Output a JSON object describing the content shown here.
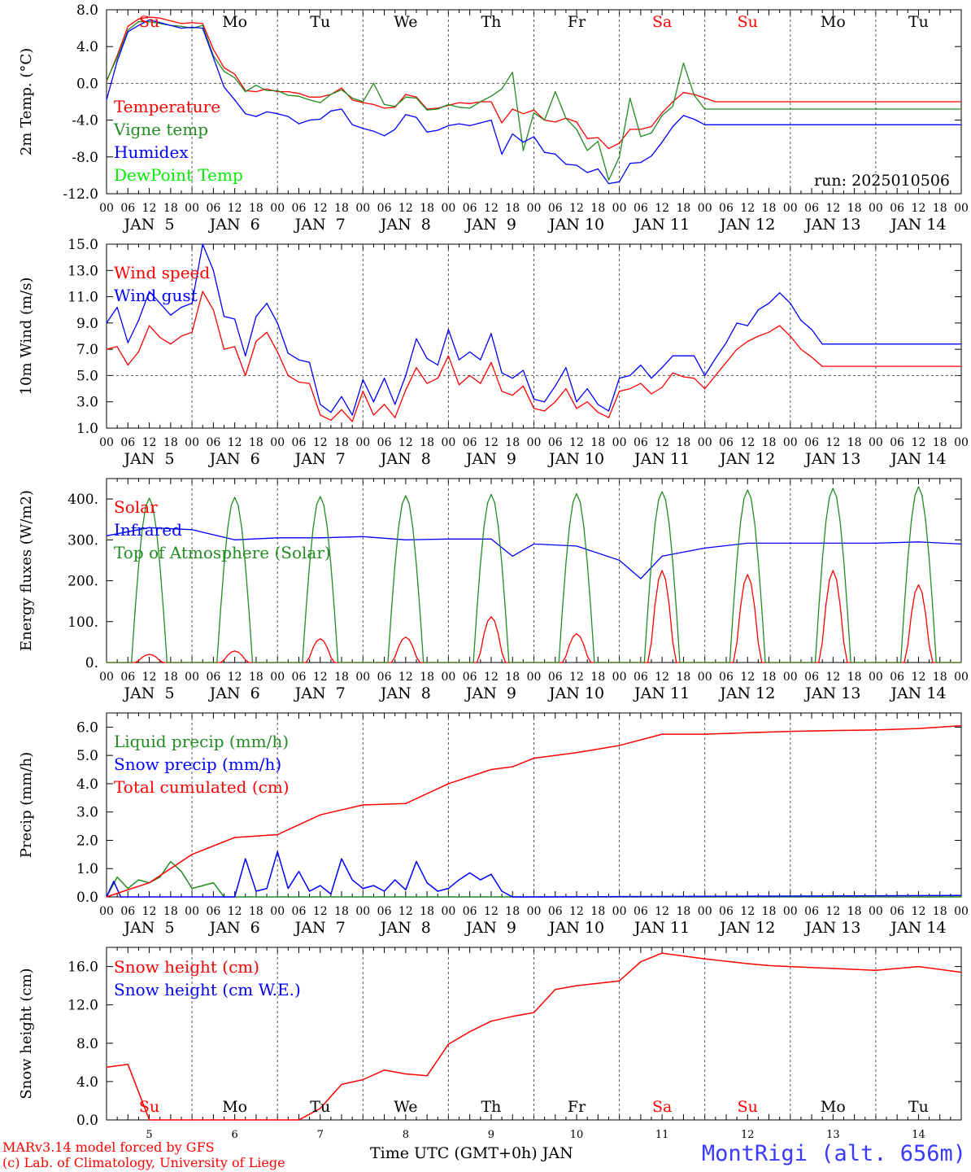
{
  "chart_data": [
    {
      "type": "line",
      "ylabel": "2m Temp. (°C)",
      "ylim": [
        -12,
        8
      ],
      "yticks": [
        "8.0",
        "4.0",
        "0.0",
        "-4.0",
        "-8.0",
        "-12.0"
      ],
      "legend": [
        "Temperature",
        "Vigne temp",
        "Humidex",
        "DewPoint Temp"
      ],
      "annotation": "run: 2025010506",
      "x_hours": [
        0,
        3,
        6,
        9,
        12,
        15,
        18,
        21,
        24,
        27,
        30,
        33,
        36,
        39,
        42,
        45,
        48,
        51,
        54,
        57,
        60,
        63,
        66,
        69,
        72,
        75,
        78,
        81,
        84,
        87,
        90,
        93,
        96,
        99,
        102,
        105,
        108,
        111,
        114,
        117,
        120,
        123,
        126,
        129,
        132,
        135,
        138,
        141,
        144,
        147,
        150,
        153,
        156,
        159,
        162,
        165,
        168,
        171,
        174,
        177,
        180,
        183,
        186,
        189,
        192,
        195,
        198,
        201,
        204,
        207,
        210,
        213,
        216,
        219,
        222,
        225,
        228,
        231,
        234,
        237,
        240
      ],
      "series": [
        {
          "name": "Temperature",
          "color": "#ff0000",
          "values": [
            0.2,
            3.0,
            6.2,
            7.0,
            7.2,
            7.1,
            6.8,
            6.5,
            6.6,
            6.5,
            3.7,
            1.7,
            1.0,
            -0.8,
            -0.9,
            -0.6,
            -0.9,
            -0.9,
            -1.1,
            -1.5,
            -1.5,
            -1.2,
            -0.5,
            -1.8,
            -2.1,
            -2.3,
            -2.7,
            -2.6,
            -1.2,
            -1.5,
            -2.8,
            -2.7,
            -2.4,
            -2.1,
            -2.2,
            -2.0,
            -2.0,
            -4.3,
            -2.8,
            -3.3,
            -2.9,
            -4.0,
            -4.2,
            -3.8,
            -4.2,
            -6.0,
            -5.9,
            -7.1,
            -6.5,
            -5.0,
            -5.0,
            -4.7,
            -3.2,
            -2.0,
            -1.0,
            -1.2,
            -1.6,
            -2.0,
            -2.0,
            -2.0,
            -2.0,
            -2.0,
            -2.0,
            -2.0,
            -2.0,
            -2.0,
            -2.0,
            -2.0,
            -2.0,
            -2.0,
            -2.0,
            -2.0,
            -2.0,
            -2.0,
            -2.0,
            -2.0,
            -2.0,
            -2.0,
            -2.0,
            -2.0,
            -2.0
          ]
        },
        {
          "name": "Vigne temp",
          "color": "#228b22",
          "values": [
            0.3,
            2.8,
            5.8,
            6.7,
            6.7,
            6.5,
            6.3,
            6.2,
            6.0,
            6.3,
            3.0,
            1.3,
            0.6,
            -0.9,
            -0.2,
            -0.8,
            -0.8,
            -1.3,
            -1.4,
            -1.8,
            -2.1,
            -1.2,
            -0.7,
            -1.6,
            -2.0,
            0.0,
            -2.3,
            -2.5,
            -1.5,
            -1.6,
            -2.9,
            -2.8,
            -2.3,
            -2.6,
            -2.7,
            -2.0,
            -1.4,
            -0.6,
            1.2,
            -7.3,
            -3.2,
            -4.0,
            -0.9,
            -3.8,
            -5.0,
            -7.3,
            -6.3,
            -10.5,
            -8.0,
            -1.6,
            -5.8,
            -5.4,
            -3.5,
            -2.5,
            2.2,
            -1.3,
            -2.8,
            -2.8,
            -2.8,
            -2.8,
            -2.8,
            -2.8,
            -2.8,
            -2.8,
            -2.8,
            -2.8,
            -2.8,
            -2.8,
            -2.8,
            -2.8,
            -2.8,
            -2.8,
            -2.8,
            -2.8,
            -2.8,
            -2.8,
            -2.8,
            -2.8,
            -2.8,
            -2.8,
            -2.8
          ]
        },
        {
          "name": "Humidex",
          "color": "#0000ff",
          "values": [
            -1.8,
            2.4,
            5.6,
            6.3,
            6.9,
            6.6,
            6.3,
            6.0,
            6.1,
            6.0,
            2.8,
            -0.4,
            -1.8,
            -3.3,
            -3.6,
            -3.1,
            -3.3,
            -3.6,
            -4.4,
            -4.0,
            -3.9,
            -3.0,
            -2.8,
            -4.5,
            -4.9,
            -5.2,
            -5.7,
            -5.0,
            -3.4,
            -3.7,
            -5.3,
            -5.1,
            -4.6,
            -4.4,
            -4.6,
            -4.3,
            -4.0,
            -7.7,
            -5.5,
            -6.4,
            -5.8,
            -7.5,
            -7.7,
            -8.8,
            -8.9,
            -9.7,
            -9.3,
            -10.9,
            -10.7,
            -8.7,
            -8.6,
            -7.9,
            -6.4,
            -4.7,
            -3.5,
            -3.9,
            -4.5,
            -4.5,
            -4.5,
            -4.5,
            -4.5,
            -4.5,
            -4.5,
            -4.5,
            -4.5,
            -4.5,
            -4.5,
            -4.5,
            -4.5,
            -4.5,
            -4.5,
            -4.5,
            -4.5,
            -4.5,
            -4.5,
            -4.5,
            -4.5,
            -4.5,
            -4.5,
            -4.5,
            -4.5
          ]
        },
        {
          "name": "DewPoint Temp",
          "color": "#00ee00",
          "values": []
        }
      ]
    },
    {
      "type": "line",
      "ylabel": "10m Wind (m/s)",
      "ylim": [
        1,
        15
      ],
      "yticks": [
        "15.0",
        "13.0",
        "11.0",
        "9.0",
        "7.0",
        "5.0",
        "3.0",
        "1.0"
      ],
      "legend": [
        "Wind speed",
        "Wind gust"
      ],
      "x_hours": [
        0,
        3,
        6,
        9,
        12,
        15,
        18,
        21,
        24,
        27,
        30,
        33,
        36,
        39,
        42,
        45,
        48,
        51,
        54,
        57,
        60,
        63,
        66,
        69,
        72,
        75,
        78,
        81,
        84,
        87,
        90,
        93,
        96,
        99,
        102,
        105,
        108,
        111,
        114,
        117,
        120,
        123,
        126,
        129,
        132,
        135,
        138,
        141,
        144,
        147,
        150,
        153,
        156,
        159,
        162,
        165,
        168,
        171,
        174,
        177,
        180,
        183,
        186,
        189,
        192,
        195,
        198,
        201,
        204,
        207,
        210,
        213,
        216,
        219,
        222,
        225,
        228,
        231,
        234,
        237,
        240
      ],
      "series": [
        {
          "name": "Wind speed",
          "color": "#ff0000",
          "values": [
            7.0,
            7.2,
            5.8,
            6.8,
            8.8,
            7.9,
            7.4,
            8.0,
            8.3,
            11.4,
            10.0,
            7.0,
            7.2,
            5.0,
            7.6,
            8.3,
            6.8,
            5.0,
            4.5,
            4.4,
            2.0,
            1.6,
            2.4,
            1.5,
            3.8,
            2.0,
            2.8,
            1.8,
            3.9,
            5.6,
            4.4,
            4.8,
            6.5,
            4.3,
            5.0,
            4.4,
            6.0,
            3.8,
            3.5,
            4.2,
            2.5,
            2.3,
            3.0,
            4.0,
            2.5,
            3.0,
            2.2,
            1.8,
            3.8,
            4.0,
            4.4,
            3.6,
            4.1,
            5.2,
            4.9,
            4.8,
            4.0,
            5.0,
            6.0,
            7.0,
            7.6,
            8.0,
            8.3,
            8.8,
            8.0,
            7.0,
            6.4,
            5.7,
            5.7,
            5.7,
            5.7,
            5.7,
            5.7,
            5.7,
            5.7,
            5.7,
            5.7,
            5.7,
            5.7,
            5.7,
            5.7
          ]
        },
        {
          "name": "Wind gust",
          "color": "#0000ff",
          "values": [
            9.0,
            10.2,
            7.5,
            9.2,
            11.4,
            10.5,
            9.6,
            10.2,
            10.5,
            15.0,
            13.0,
            9.5,
            9.3,
            6.5,
            9.5,
            10.5,
            9.0,
            6.7,
            6.2,
            6.0,
            2.8,
            2.2,
            3.4,
            2.0,
            4.7,
            3.0,
            4.8,
            2.8,
            5.0,
            7.8,
            6.3,
            5.8,
            8.5,
            6.2,
            6.8,
            6.2,
            8.2,
            5.2,
            4.8,
            5.4,
            3.2,
            3.0,
            4.2,
            5.6,
            3.0,
            4.0,
            2.8,
            2.3,
            4.8,
            5.0,
            5.8,
            4.8,
            5.6,
            6.5,
            6.5,
            6.5,
            5.0,
            6.3,
            7.5,
            9.0,
            8.8,
            10.0,
            10.5,
            11.3,
            10.5,
            9.2,
            8.5,
            7.4,
            7.4,
            7.4,
            7.4,
            7.4,
            7.4,
            7.4,
            7.4,
            7.4,
            7.4,
            7.4,
            7.4,
            7.4,
            7.4
          ]
        }
      ]
    },
    {
      "type": "line",
      "ylabel": "Energy fluxes (W/m2)",
      "ylim": [
        0,
        450
      ],
      "yticks": [
        "400.",
        "300.",
        "200.",
        "100.",
        "0."
      ],
      "legend": [
        "Solar",
        "Infrared",
        "Top of Atmosphere (Solar)"
      ],
      "series": [
        {
          "name": "Solar",
          "color": "#ff0000",
          "day_peaks": [
            20,
            28,
            58,
            62,
            112,
            70,
            225,
            215,
            225,
            190
          ]
        },
        {
          "name": "Infrared",
          "color": "#0000ff",
          "x_hours": [
            0,
            12,
            24,
            36,
            48,
            60,
            72,
            84,
            96,
            108,
            114,
            120,
            132,
            144,
            150,
            156,
            168,
            180,
            192,
            204,
            216,
            228,
            240
          ],
          "values": [
            310,
            330,
            325,
            300,
            305,
            305,
            308,
            300,
            302,
            302,
            260,
            290,
            285,
            250,
            205,
            260,
            280,
            292,
            292,
            292,
            292,
            295,
            290
          ]
        },
        {
          "name": "Top of Atmosphere (Solar)",
          "color": "#228b22",
          "day_peaks": [
            402,
            404,
            406,
            408,
            411,
            413,
            418,
            422,
            426,
            430
          ]
        }
      ]
    },
    {
      "type": "line",
      "ylabel": "Precip (mm/h)",
      "ylim": [
        0,
        6.5
      ],
      "yticks": [
        "6.0",
        "5.0",
        "4.0",
        "3.0",
        "2.0",
        "1.0",
        "0.0"
      ],
      "legend": [
        "Liquid precip (mm/h)",
        "Snow precip (mm/h)",
        "Total cumulated (cm)"
      ],
      "series": [
        {
          "name": "Liquid precip (mm/h)",
          "color": "#228b22",
          "x_hours": [
            0,
            3,
            6,
            9,
            12,
            15,
            18,
            21,
            24,
            27,
            30,
            33,
            36,
            39,
            42,
            45,
            48,
            51,
            240
          ],
          "values": [
            0.0,
            0.7,
            0.3,
            0.6,
            0.5,
            0.7,
            1.25,
            0.9,
            0.3,
            0.4,
            0.5,
            0.0,
            0.0,
            0.0,
            0.0,
            0.0,
            0.0,
            0.0,
            0.0
          ]
        },
        {
          "name": "Snow precip (mm/h)",
          "color": "#0000ff",
          "x_hours": [
            0,
            2,
            4,
            24,
            36,
            39,
            42,
            45,
            48,
            51,
            54,
            57,
            60,
            63,
            66,
            69,
            72,
            75,
            78,
            81,
            84,
            87,
            90,
            93,
            96,
            99,
            102,
            105,
            108,
            111,
            114,
            117,
            120,
            240
          ],
          "values": [
            0.0,
            0.55,
            0.0,
            0.0,
            0.0,
            1.35,
            0.2,
            0.3,
            1.6,
            0.3,
            0.9,
            0.2,
            0.4,
            0.1,
            1.35,
            0.6,
            0.3,
            0.4,
            0.2,
            0.6,
            0.25,
            1.25,
            0.5,
            0.2,
            0.3,
            0.6,
            0.85,
            0.6,
            0.8,
            0.2,
            0.0,
            0.0,
            0.0,
            0.05
          ]
        },
        {
          "name": "Total cumulated (cm)",
          "color": "#ff0000",
          "x_hours": [
            0,
            12,
            24,
            36,
            48,
            60,
            72,
            84,
            96,
            108,
            114,
            120,
            132,
            144,
            156,
            168,
            180,
            192,
            204,
            216,
            228,
            240
          ],
          "values": [
            0.0,
            0.5,
            1.5,
            2.1,
            2.2,
            2.9,
            3.25,
            3.3,
            4.0,
            4.5,
            4.6,
            4.9,
            5.1,
            5.35,
            5.75,
            5.75,
            5.8,
            5.85,
            5.88,
            5.9,
            5.95,
            6.05
          ]
        }
      ]
    },
    {
      "type": "line",
      "ylabel": "Snow height (cm)",
      "ylim": [
        0,
        18
      ],
      "yticks": [
        "16.0",
        "12.0",
        "8.0",
        "4.0",
        "0.0"
      ],
      "legend": [
        "Snow height (cm)",
        "Snow height (cm W.E.)"
      ],
      "series": [
        {
          "name": "Snow height (cm)",
          "color": "#ff0000",
          "x_hours": [
            0,
            6,
            12,
            24,
            36,
            48,
            54,
            60,
            66,
            72,
            78,
            84,
            90,
            96,
            102,
            108,
            114,
            120,
            126,
            132,
            144,
            150,
            156,
            168,
            180,
            186,
            192,
            204,
            216,
            228,
            240
          ],
          "values": [
            5.5,
            5.8,
            0.0,
            0.0,
            0.0,
            0.0,
            0.0,
            1.2,
            3.7,
            4.2,
            5.2,
            4.8,
            4.6,
            7.9,
            9.2,
            10.3,
            10.8,
            11.2,
            13.6,
            14.0,
            14.5,
            16.5,
            17.4,
            16.8,
            16.3,
            16.1,
            16.0,
            15.8,
            15.6,
            16.0,
            15.4
          ]
        },
        {
          "name": "Snow height (cm W.E.)",
          "color": "#0000ff",
          "values": []
        }
      ]
    }
  ],
  "day_names": [
    {
      "label": "Su",
      "color": "#ff0000"
    },
    {
      "label": "Mo",
      "color": "#000000"
    },
    {
      "label": "Tu",
      "color": "#000000"
    },
    {
      "label": "We",
      "color": "#000000"
    },
    {
      "label": "Th",
      "color": "#000000"
    },
    {
      "label": "Fr",
      "color": "#000000"
    },
    {
      "label": "Sa",
      "color": "#ff0000"
    },
    {
      "label": "Su",
      "color": "#ff0000"
    },
    {
      "label": "Mo",
      "color": "#000000"
    },
    {
      "label": "Tu",
      "color": "#000000"
    }
  ],
  "date_labels": [
    "JAN  5",
    "JAN  6",
    "JAN  7",
    "JAN  8",
    "JAN  9",
    "JAN 10",
    "JAN 11",
    "JAN 12",
    "JAN 13",
    "JAN 14"
  ],
  "hour_ticks": [
    "00",
    "06",
    "12",
    "18"
  ],
  "hour_tick_end": "00",
  "bottom_day_numbers": [
    "5",
    "6",
    "7",
    "8",
    "9",
    "10",
    "11",
    "12",
    "13",
    "14"
  ],
  "x_title": "Time UTC (GMT+0h) JAN",
  "footer_model": "MARv3.14 model forced by GFS",
  "footer_credit": "(c) Lab. of Climatology, University of Liege",
  "site_label": "MontRigi (alt. 656m)"
}
